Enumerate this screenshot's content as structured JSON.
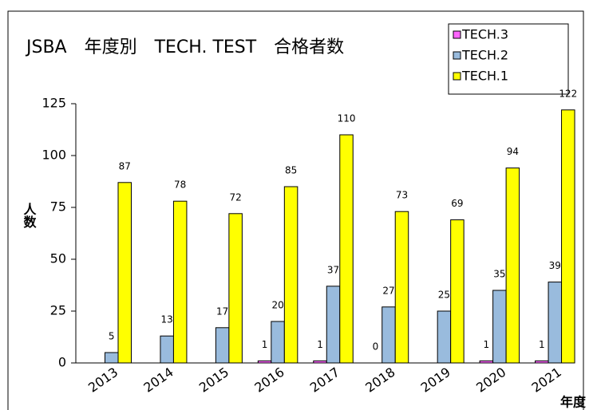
{
  "chart_data": {
    "type": "bar",
    "title": "JSBA　年度別　TECH. TEST　合格者数",
    "y_label": "人数",
    "x_label": "年度",
    "categories": [
      "2013",
      "2014",
      "2015",
      "2016",
      "2017",
      "2018",
      "2019",
      "2020",
      "2021"
    ],
    "series": [
      {
        "name": "TECH.3",
        "color": "#ff66ff",
        "values": [
          null,
          null,
          null,
          1,
          1,
          0,
          null,
          1,
          1
        ]
      },
      {
        "name": "TECH.2",
        "color": "#99bbdd",
        "values": [
          5,
          13,
          17,
          20,
          37,
          27,
          25,
          35,
          39
        ]
      },
      {
        "name": "TECH.1",
        "color": "#ffff00",
        "values": [
          87,
          78,
          72,
          85,
          110,
          73,
          69,
          94,
          122
        ]
      }
    ],
    "ylim": [
      0,
      125
    ],
    "yticks": [
      0,
      25,
      50,
      75,
      100,
      125
    ],
    "grid": false,
    "legend": "upper right"
  }
}
